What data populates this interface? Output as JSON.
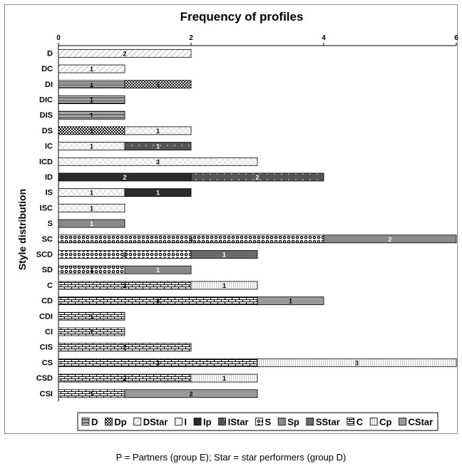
{
  "chart_data": {
    "type": "bar",
    "orientation": "horizontal",
    "stacked": true,
    "title": "Frequency of profiles",
    "ylabel": "Style distribution",
    "xlim": [
      0,
      6
    ],
    "x_ticks": [
      0,
      2,
      4,
      6
    ],
    "grid": false,
    "legend_position": "bottom",
    "categories": [
      "D",
      "DC",
      "DI",
      "DIC",
      "DIS",
      "DS",
      "IC",
      "ICD",
      "ID",
      "IS",
      "ISC",
      "S",
      "SC",
      "SCD",
      "SD",
      "C",
      "CD",
      "CDI",
      "CI",
      "CIS",
      "CS",
      "CSD",
      "CSI"
    ],
    "legend": [
      "D",
      "Dp",
      "DStar",
      "I",
      "Ip",
      "IStar",
      "S",
      "Sp",
      "SStar",
      "C",
      "Cp",
      "CStar"
    ],
    "bars": [
      {
        "category": "D",
        "segments": [
          {
            "series": "DStar",
            "value": 2
          }
        ]
      },
      {
        "category": "DC",
        "segments": [
          {
            "series": "DStar",
            "value": 1
          }
        ]
      },
      {
        "category": "DI",
        "segments": [
          {
            "series": "D",
            "value": 1
          },
          {
            "series": "Dp",
            "value": 1
          }
        ]
      },
      {
        "category": "DIC",
        "segments": [
          {
            "series": "D",
            "value": 1
          }
        ]
      },
      {
        "category": "DIS",
        "segments": [
          {
            "series": "D",
            "value": 1
          }
        ]
      },
      {
        "category": "DS",
        "segments": [
          {
            "series": "Dp",
            "value": 1
          },
          {
            "series": "I",
            "value": 1
          }
        ]
      },
      {
        "category": "IC",
        "segments": [
          {
            "series": "I",
            "value": 1
          },
          {
            "series": "IStar",
            "value": 1
          }
        ]
      },
      {
        "category": "ICD",
        "segments": [
          {
            "series": "I",
            "value": 3
          }
        ]
      },
      {
        "category": "ID",
        "segments": [
          {
            "series": "Ip",
            "value": 2
          },
          {
            "series": "IStar",
            "value": 2
          }
        ]
      },
      {
        "category": "IS",
        "segments": [
          {
            "series": "I",
            "value": 1
          },
          {
            "series": "Ip",
            "value": 1
          }
        ]
      },
      {
        "category": "ISC",
        "segments": [
          {
            "series": "I",
            "value": 1
          }
        ]
      },
      {
        "category": "S",
        "segments": [
          {
            "series": "Sp",
            "value": 1
          }
        ]
      },
      {
        "category": "SC",
        "segments": [
          {
            "series": "S",
            "value": 4
          },
          {
            "series": "Sp",
            "value": 2
          }
        ]
      },
      {
        "category": "SCD",
        "segments": [
          {
            "series": "S",
            "value": 2
          },
          {
            "series": "SStar",
            "value": 1
          }
        ]
      },
      {
        "category": "SD",
        "segments": [
          {
            "series": "S",
            "value": 1
          },
          {
            "series": "Sp",
            "value": 1
          }
        ]
      },
      {
        "category": "C",
        "segments": [
          {
            "series": "C",
            "value": 2
          },
          {
            "series": "Cp",
            "value": 1
          }
        ]
      },
      {
        "category": "CD",
        "segments": [
          {
            "series": "C",
            "value": 3
          },
          {
            "series": "CStar",
            "value": 1
          }
        ]
      },
      {
        "category": "CDI",
        "segments": [
          {
            "series": "C",
            "value": 1
          }
        ]
      },
      {
        "category": "CI",
        "segments": [
          {
            "series": "C",
            "value": 1
          }
        ]
      },
      {
        "category": "CIS",
        "segments": [
          {
            "series": "C",
            "value": 2
          }
        ]
      },
      {
        "category": "CS",
        "segments": [
          {
            "series": "C",
            "value": 3
          },
          {
            "series": "Cp",
            "value": 3
          }
        ]
      },
      {
        "category": "CSD",
        "segments": [
          {
            "series": "C",
            "value": 2
          },
          {
            "series": "Cp",
            "value": 1
          }
        ]
      },
      {
        "category": "CSI",
        "segments": [
          {
            "series": "C",
            "value": 1
          },
          {
            "series": "CStar",
            "value": 2
          }
        ]
      }
    ]
  },
  "footnote": "P = Partners (group E); Star = star performers (group D)"
}
